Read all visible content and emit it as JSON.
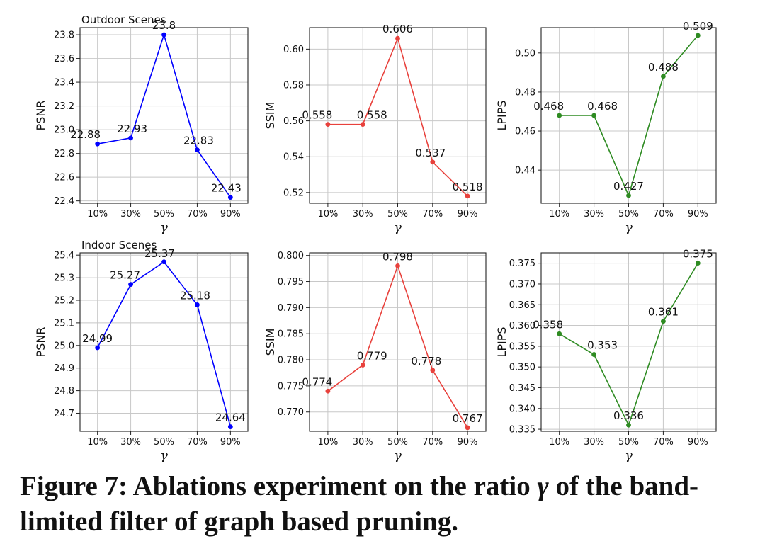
{
  "chart_data": [
    {
      "type": "line",
      "row_title": "Outdoor Scenes",
      "categories": [
        "10%",
        "30%",
        "50%",
        "70%",
        "90%"
      ],
      "values": [
        22.88,
        22.93,
        23.8,
        22.83,
        22.43
      ],
      "labels": [
        "22.88",
        "22.93",
        "23.8",
        "22.83",
        "22.43"
      ],
      "ylim": [
        22.38,
        23.86
      ],
      "yticks": [
        22.4,
        22.6,
        22.8,
        23.0,
        23.2,
        23.4,
        23.6,
        23.8
      ],
      "ytick_labels": [
        "22.4",
        "22.6",
        "22.8",
        "23.0",
        "23.2",
        "23.4",
        "23.6",
        "23.8"
      ],
      "xlabel": "γ",
      "ylabel": "PSNR",
      "color": "#0000ff",
      "grid": true
    },
    {
      "type": "line",
      "row_title": "",
      "categories": [
        "10%",
        "30%",
        "50%",
        "70%",
        "90%"
      ],
      "values": [
        0.558,
        0.558,
        0.606,
        0.537,
        0.518
      ],
      "labels": [
        "0.558",
        "0.558",
        "0.606",
        "0.537",
        "0.518"
      ],
      "ylim": [
        0.514,
        0.612
      ],
      "yticks": [
        0.52,
        0.54,
        0.56,
        0.58,
        0.6
      ],
      "ytick_labels": [
        "0.52",
        "0.54",
        "0.56",
        "0.58",
        "0.60"
      ],
      "xlabel": "γ",
      "ylabel": "SSIM",
      "color": "#e8413c",
      "grid": true
    },
    {
      "type": "line",
      "row_title": "",
      "categories": [
        "10%",
        "30%",
        "50%",
        "70%",
        "90%"
      ],
      "values": [
        0.468,
        0.468,
        0.427,
        0.488,
        0.509
      ],
      "labels": [
        "0.468",
        "0.468",
        "0.427",
        "0.488",
        "0.509"
      ],
      "ylim": [
        0.423,
        0.513
      ],
      "yticks": [
        0.44,
        0.46,
        0.48,
        0.5
      ],
      "ytick_labels": [
        "0.44",
        "0.46",
        "0.48",
        "0.50"
      ],
      "xlabel": "γ",
      "ylabel": "LPIPS",
      "color": "#2e8b22",
      "grid": true
    },
    {
      "type": "line",
      "row_title": "Indoor Scenes",
      "categories": [
        "10%",
        "30%",
        "50%",
        "70%",
        "90%"
      ],
      "values": [
        24.99,
        25.27,
        25.37,
        25.18,
        24.64
      ],
      "labels": [
        "24.99",
        "25.27",
        "25.37",
        "25.18",
        "24.64"
      ],
      "ylim": [
        24.62,
        25.41
      ],
      "yticks": [
        24.7,
        24.8,
        24.9,
        25.0,
        25.1,
        25.2,
        25.3,
        25.4
      ],
      "ytick_labels": [
        "24.7",
        "24.8",
        "24.9",
        "25.0",
        "25.1",
        "25.2",
        "25.3",
        "25.4"
      ],
      "xlabel": "γ",
      "ylabel": "PSNR",
      "color": "#0000ff",
      "grid": true
    },
    {
      "type": "line",
      "row_title": "",
      "categories": [
        "10%",
        "30%",
        "50%",
        "70%",
        "90%"
      ],
      "values": [
        0.774,
        0.779,
        0.798,
        0.778,
        0.767
      ],
      "labels": [
        "0.774",
        "0.779",
        "0.798",
        "0.778",
        "0.767"
      ],
      "ylim": [
        0.7663,
        0.8005
      ],
      "yticks": [
        0.77,
        0.775,
        0.78,
        0.785,
        0.79,
        0.795,
        0.8
      ],
      "ytick_labels": [
        "0.770",
        "0.775",
        "0.780",
        "0.785",
        "0.790",
        "0.795",
        "0.800"
      ],
      "xlabel": "γ",
      "ylabel": "SSIM",
      "color": "#e8413c",
      "grid": true
    },
    {
      "type": "line",
      "row_title": "",
      "categories": [
        "10%",
        "30%",
        "50%",
        "70%",
        "90%"
      ],
      "values": [
        0.358,
        0.353,
        0.336,
        0.361,
        0.375
      ],
      "labels": [
        "0.358",
        "0.353",
        "0.336",
        "0.361",
        "0.375"
      ],
      "ylim": [
        0.3345,
        0.3775
      ],
      "yticks": [
        0.335,
        0.34,
        0.345,
        0.35,
        0.355,
        0.36,
        0.365,
        0.37,
        0.375
      ],
      "ytick_labels": [
        "0.335",
        "0.340",
        "0.345",
        "0.350",
        "0.355",
        "0.360",
        "0.365",
        "0.370",
        "0.375"
      ],
      "xlabel": "γ",
      "ylabel": "LPIPS",
      "color": "#2e8b22",
      "grid": true
    }
  ],
  "caption": {
    "prefix": "Figure 7: Ablations experiment on the ratio ",
    "symbol": "γ",
    "suffix": " of the band-limited filter of graph based pruning."
  }
}
